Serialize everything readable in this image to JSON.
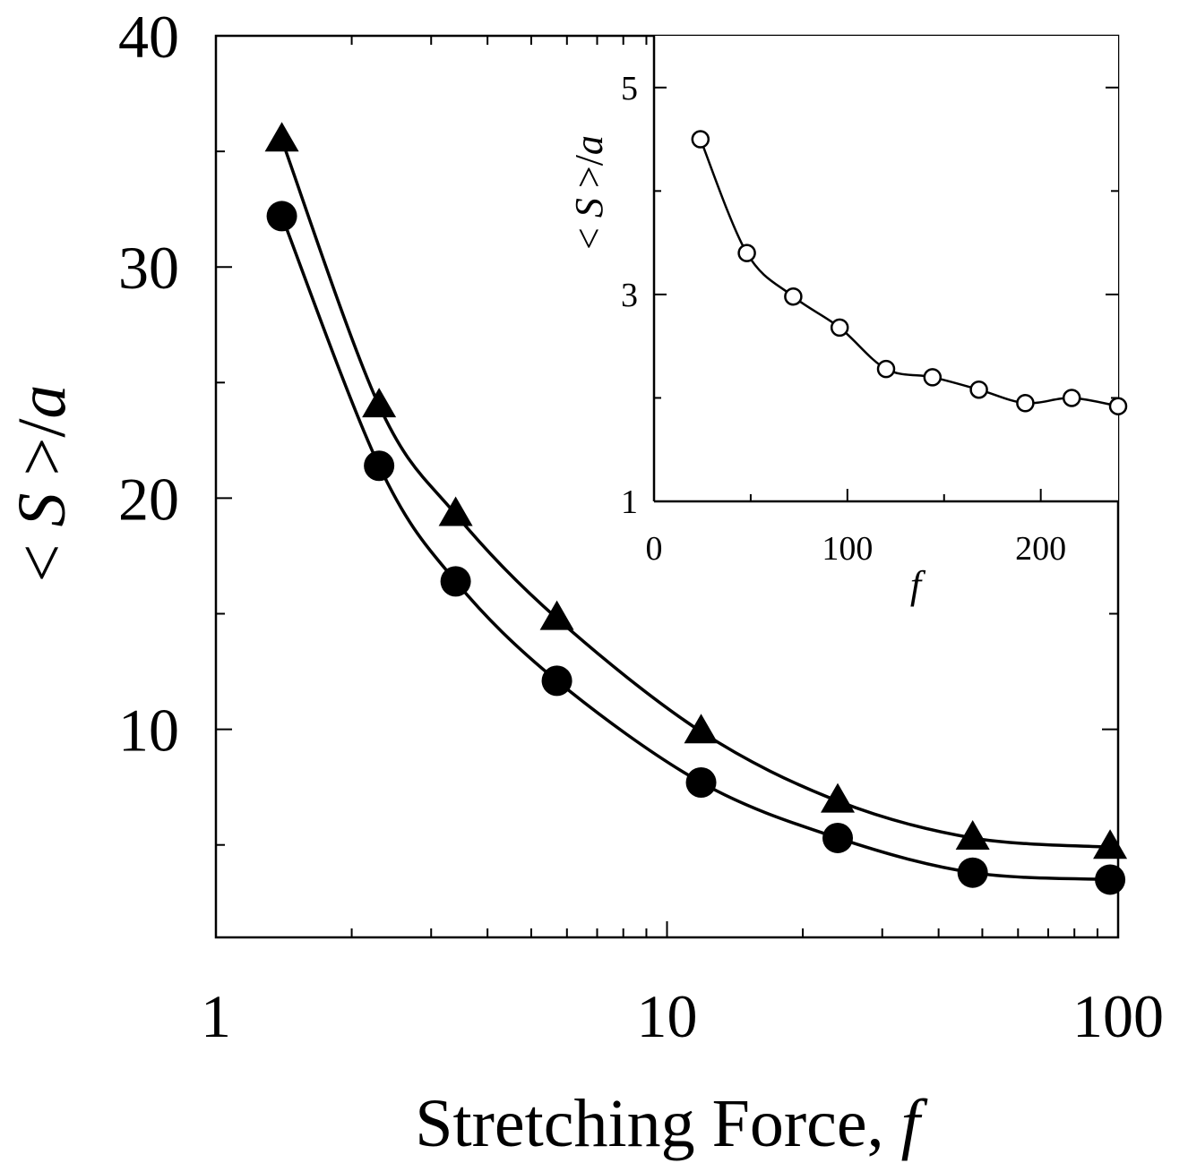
{
  "chart_data": [
    {
      "type": "line",
      "x_scale": "log",
      "xlabel": "Stretching Force, f",
      "ylabel": "< S >/a",
      "xlim": [
        1,
        100
      ],
      "ylim": [
        1,
        40
      ],
      "x_ticks": [
        "1",
        "10",
        "100"
      ],
      "y_ticks": [
        "10",
        "20",
        "30",
        "40"
      ],
      "grid": false,
      "series": [
        {
          "marker": "triangle",
          "x": [
            1.4,
            2.3,
            3.4,
            5.7,
            11.9,
            23.9,
            47.6,
            96.0
          ],
          "values": [
            35.5,
            24.0,
            19.3,
            14.8,
            9.9,
            6.9,
            5.3,
            4.9
          ]
        },
        {
          "marker": "circle",
          "x": [
            1.4,
            2.3,
            3.4,
            5.7,
            11.9,
            23.9,
            47.6,
            96.0
          ],
          "values": [
            32.2,
            21.4,
            16.4,
            12.1,
            7.7,
            5.3,
            3.8,
            3.5
          ]
        }
      ]
    },
    {
      "type": "line",
      "x_scale": "linear",
      "xlabel": "f",
      "ylabel": "< S >/a",
      "xlim": [
        0,
        240
      ],
      "ylim": [
        1,
        5.5
      ],
      "x_ticks": [
        "0",
        "100",
        "200"
      ],
      "y_ticks": [
        "1",
        "3",
        "5"
      ],
      "grid": false,
      "series": [
        {
          "marker": "open-circle",
          "x": [
            24,
            48,
            72,
            96,
            120,
            144,
            168,
            192,
            216,
            240
          ],
          "values": [
            4.5,
            3.4,
            2.98,
            2.68,
            2.28,
            2.2,
            2.08,
            1.95,
            2.0,
            1.92
          ]
        }
      ]
    }
  ]
}
